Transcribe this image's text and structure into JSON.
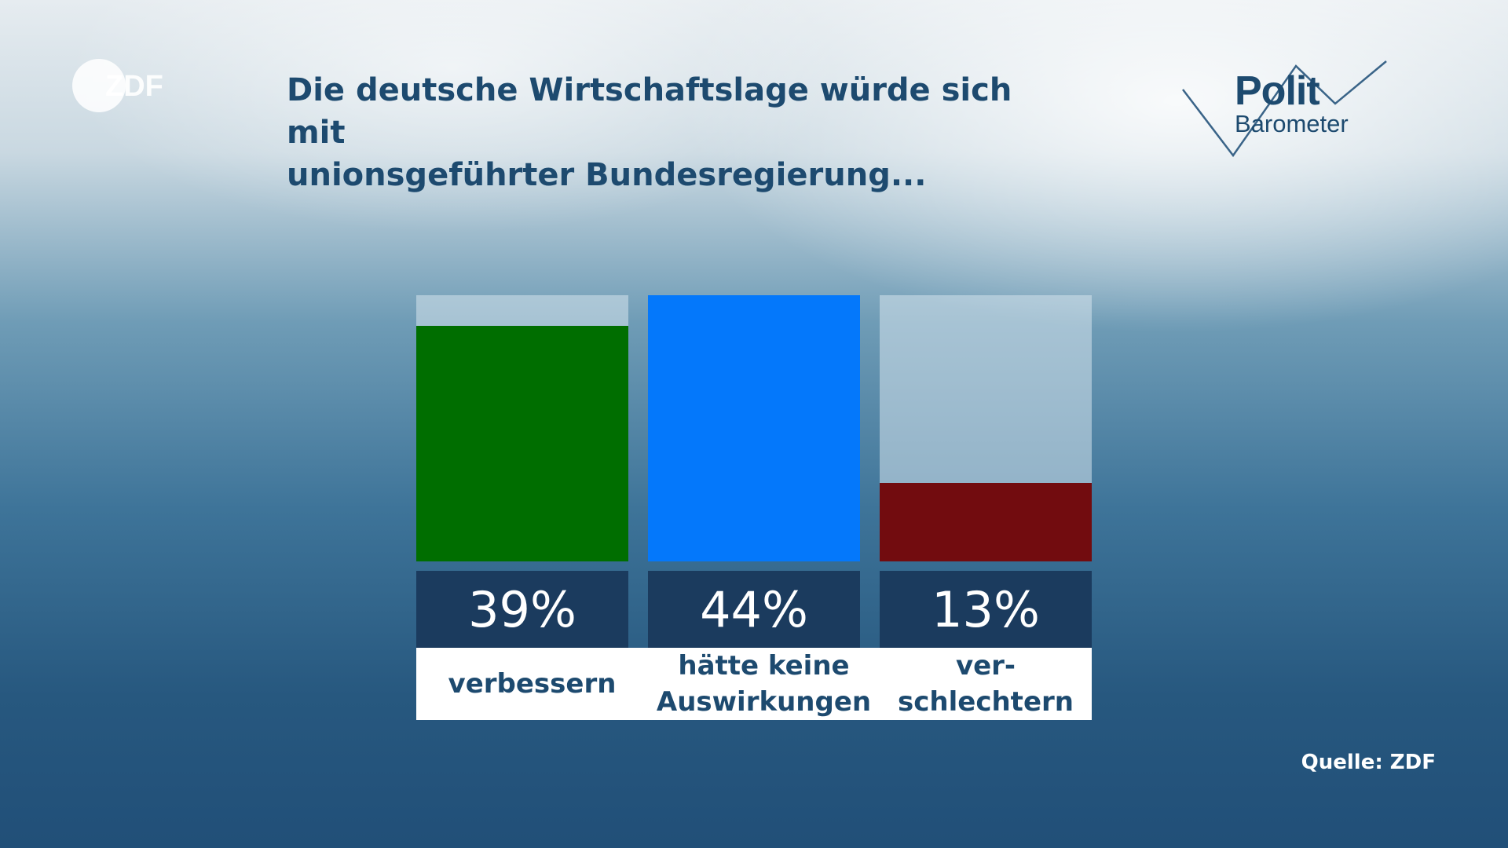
{
  "header": {
    "logo_left": "ZDF",
    "title_line1": "Die deutsche Wirtschaftslage würde sich mit",
    "title_line2": "unionsgeführter Bundesregierung...",
    "logo_right_line1": "Polit",
    "logo_right_line2": "Barometer"
  },
  "footer": {
    "source": "Quelle: ZDF"
  },
  "chart_data": {
    "type": "bar",
    "title": "Die deutsche Wirtschaftslage würde sich mit unionsgeführter Bundesregierung...",
    "categories": [
      "verbessern",
      "hätte keine\nAuswirkungen",
      "ver-\nschlechtern"
    ],
    "values": [
      39,
      44,
      13
    ],
    "value_labels": [
      "39%",
      "44%",
      "13%"
    ],
    "unit": "%",
    "ylim": [
      0,
      44
    ],
    "colors": [
      "#006e00",
      "#0478fb",
      "#720c0f"
    ],
    "grid": false,
    "legend": "none"
  }
}
